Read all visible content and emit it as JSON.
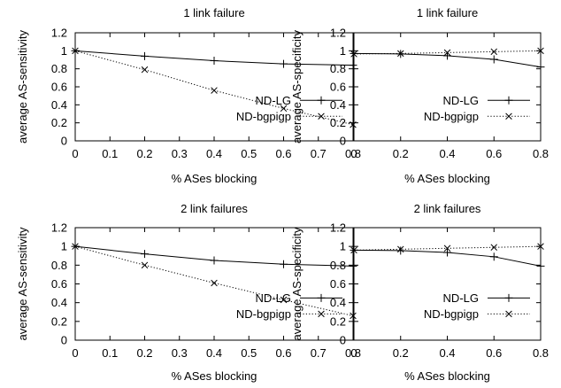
{
  "chart_data": [
    {
      "type": "line",
      "title": "1 link failure",
      "xlabel": "% ASes blocking",
      "ylabel": "average AS-sensitivity",
      "xlim": [
        0,
        0.8
      ],
      "ylim": [
        0,
        1.2
      ],
      "xticks": [
        "0",
        "0.1",
        "0.2",
        "0.3",
        "0.4",
        "0.5",
        "0.6",
        "0.7",
        "0.8"
      ],
      "yticks": [
        "0",
        "0.2",
        "0.4",
        "0.6",
        "0.8",
        "1",
        "1.2"
      ],
      "legend": "center-right",
      "grid": false,
      "series": [
        {
          "name": "ND-LG",
          "style": "solid",
          "marker": "+",
          "x": [
            0,
            0.2,
            0.4,
            0.6,
            0.8
          ],
          "y": [
            1.0,
            0.94,
            0.89,
            0.855,
            0.84
          ]
        },
        {
          "name": "ND-bgpigp",
          "style": "dotted",
          "marker": "x",
          "x": [
            0,
            0.2,
            0.4,
            0.6,
            0.8
          ],
          "y": [
            1.0,
            0.79,
            0.56,
            0.36,
            0.18
          ]
        }
      ]
    },
    {
      "type": "line",
      "title": "1 link failure",
      "xlabel": "% ASes blocking",
      "ylabel": "average AS-specificity",
      "xlim": [
        0,
        0.8
      ],
      "ylim": [
        0,
        1.2
      ],
      "xticks": [
        "0",
        "0.2",
        "0.4",
        "0.6",
        "0.8"
      ],
      "yticks": [
        "0",
        "0.2",
        "0.4",
        "0.6",
        "0.8",
        "1",
        "1.2"
      ],
      "legend": "center-right",
      "grid": false,
      "series": [
        {
          "name": "ND-LG",
          "style": "solid",
          "marker": "+",
          "x": [
            0,
            0.2,
            0.4,
            0.6,
            0.8
          ],
          "y": [
            0.97,
            0.965,
            0.945,
            0.905,
            0.82
          ]
        },
        {
          "name": "ND-bgpigp",
          "style": "dotted",
          "marker": "x",
          "x": [
            0,
            0.2,
            0.4,
            0.6,
            0.8
          ],
          "y": [
            0.965,
            0.97,
            0.98,
            0.99,
            1.0
          ]
        }
      ]
    },
    {
      "type": "line",
      "title": "2 link failures",
      "xlabel": "% ASes blocking",
      "ylabel": "average AS-sensitivity",
      "xlim": [
        0,
        0.8
      ],
      "ylim": [
        0,
        1.2
      ],
      "xticks": [
        "0",
        "0.1",
        "0.2",
        "0.3",
        "0.4",
        "0.5",
        "0.6",
        "0.7",
        "0.8"
      ],
      "yticks": [
        "0",
        "0.2",
        "0.4",
        "0.6",
        "0.8",
        "1",
        "1.2"
      ],
      "legend": "center-right",
      "grid": false,
      "series": [
        {
          "name": "ND-LG",
          "style": "solid",
          "marker": "+",
          "x": [
            0,
            0.2,
            0.4,
            0.6,
            0.8
          ],
          "y": [
            1.0,
            0.92,
            0.85,
            0.81,
            0.79
          ]
        },
        {
          "name": "ND-bgpigp",
          "style": "dotted",
          "marker": "x",
          "x": [
            0,
            0.2,
            0.4,
            0.6,
            0.8
          ],
          "y": [
            1.0,
            0.8,
            0.61,
            0.43,
            0.26
          ]
        }
      ]
    },
    {
      "type": "line",
      "title": "2 link failures",
      "xlabel": "% ASes blocking",
      "ylabel": "average AS-specificity",
      "xlim": [
        0,
        0.8
      ],
      "ylim": [
        0,
        1.2
      ],
      "xticks": [
        "0",
        "0.2",
        "0.4",
        "0.6",
        "0.8"
      ],
      "yticks": [
        "0",
        "0.2",
        "0.4",
        "0.6",
        "0.8",
        "1",
        "1.2"
      ],
      "legend": "center-right",
      "grid": false,
      "series": [
        {
          "name": "ND-LG",
          "style": "solid",
          "marker": "+",
          "x": [
            0,
            0.2,
            0.4,
            0.6,
            0.8
          ],
          "y": [
            0.96,
            0.955,
            0.935,
            0.89,
            0.79
          ]
        },
        {
          "name": "ND-bgpigp",
          "style": "dotted",
          "marker": "x",
          "x": [
            0,
            0.2,
            0.4,
            0.6,
            0.8
          ],
          "y": [
            0.96,
            0.97,
            0.98,
            0.99,
            1.0
          ]
        }
      ]
    }
  ]
}
